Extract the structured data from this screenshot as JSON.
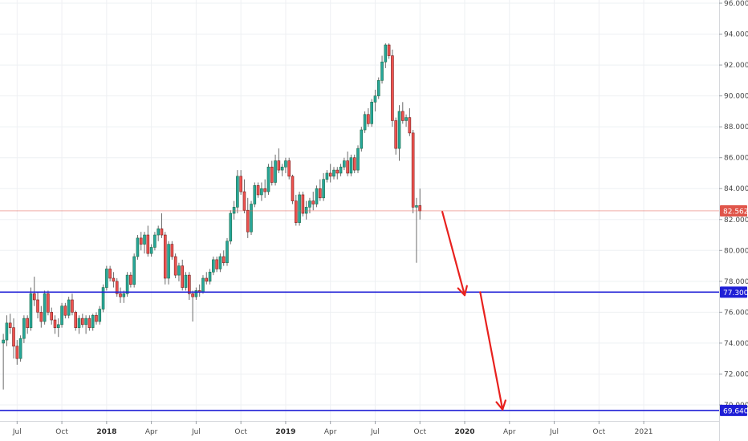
{
  "chart_data": {
    "type": "candlestick",
    "ylim": [
      69.0,
      96.0
    ],
    "y_ticks": [
      "96.000",
      "94.000",
      "92.000",
      "90.000",
      "88.000",
      "86.000",
      "84.000",
      "82.000",
      "80.000",
      "78.000",
      "76.000",
      "74.000",
      "72.000",
      "70.000"
    ],
    "y_tick_values": [
      96,
      94,
      92,
      90,
      88,
      86,
      84,
      82,
      80,
      78,
      76,
      74,
      72,
      70
    ],
    "x_ticks": [
      {
        "label": "Jul",
        "week": 4,
        "bold": false
      },
      {
        "label": "Oct",
        "week": 17,
        "bold": false
      },
      {
        "label": "2018",
        "week": 30,
        "bold": true
      },
      {
        "label": "Apr",
        "week": 43,
        "bold": false
      },
      {
        "label": "Jul",
        "week": 56,
        "bold": false
      },
      {
        "label": "Oct",
        "week": 69,
        "bold": false
      },
      {
        "label": "2019",
        "week": 82,
        "bold": true
      },
      {
        "label": "Apr",
        "week": 95,
        "bold": false
      },
      {
        "label": "Jul",
        "week": 108,
        "bold": false
      },
      {
        "label": "Oct",
        "week": 121,
        "bold": false
      },
      {
        "label": "2020",
        "week": 134,
        "bold": true
      },
      {
        "label": "Apr",
        "week": 147,
        "bold": false
      },
      {
        "label": "Jul",
        "week": 160,
        "bold": false
      },
      {
        "label": "Oct",
        "week": 173,
        "bold": false
      },
      {
        "label": "2021",
        "week": 186,
        "bold": false
      }
    ],
    "weeks_visible": [
      0,
      205
    ],
    "candles": [
      [
        74.0,
        74.6,
        71.0,
        74.2
      ],
      [
        74.2,
        75.8,
        73.8,
        75.3
      ],
      [
        75.3,
        75.9,
        74.6,
        75.0
      ],
      [
        75.0,
        75.6,
        73.0,
        73.8
      ],
      [
        73.8,
        74.2,
        72.6,
        73.0
      ],
      [
        73.0,
        74.5,
        72.8,
        74.3
      ],
      [
        74.3,
        75.8,
        74.0,
        75.6
      ],
      [
        75.6,
        75.8,
        74.6,
        75.0
      ],
      [
        75.0,
        77.6,
        74.8,
        77.2
      ],
      [
        77.2,
        78.3,
        76.4,
        76.8
      ],
      [
        76.8,
        77.3,
        75.6,
        76.0
      ],
      [
        76.0,
        76.4,
        75.0,
        75.4
      ],
      [
        75.4,
        77.4,
        75.2,
        77.2
      ],
      [
        77.2,
        77.4,
        75.8,
        76.0
      ],
      [
        76.0,
        76.3,
        75.2,
        75.5
      ],
      [
        75.5,
        75.8,
        74.6,
        75.0
      ],
      [
        75.0,
        75.6,
        74.4,
        75.2
      ],
      [
        75.2,
        76.6,
        75.0,
        76.4
      ],
      [
        76.4,
        76.6,
        75.6,
        75.8
      ],
      [
        75.8,
        77.0,
        75.6,
        76.8
      ],
      [
        76.8,
        77.2,
        75.8,
        76.0
      ],
      [
        76.0,
        76.1,
        74.8,
        75.0
      ],
      [
        75.0,
        75.8,
        74.6,
        75.6
      ],
      [
        75.6,
        75.9,
        75.0,
        75.2
      ],
      [
        75.2,
        75.8,
        74.6,
        75.6
      ],
      [
        75.6,
        75.8,
        74.8,
        75.0
      ],
      [
        75.0,
        75.9,
        74.8,
        75.8
      ],
      [
        75.8,
        76.0,
        75.2,
        75.4
      ],
      [
        75.4,
        76.4,
        75.2,
        76.2
      ],
      [
        76.2,
        77.8,
        76.0,
        77.6
      ],
      [
        77.6,
        79.0,
        77.4,
        78.8
      ],
      [
        78.8,
        79.0,
        78.0,
        78.2
      ],
      [
        78.2,
        78.6,
        77.6,
        78.0
      ],
      [
        78.0,
        78.2,
        77.0,
        77.2
      ],
      [
        77.2,
        77.6,
        76.6,
        77.0
      ],
      [
        77.0,
        77.4,
        76.6,
        77.2
      ],
      [
        77.2,
        78.6,
        77.0,
        78.4
      ],
      [
        78.4,
        78.6,
        77.6,
        77.8
      ],
      [
        77.8,
        79.8,
        77.6,
        79.6
      ],
      [
        79.6,
        81.0,
        79.4,
        80.8
      ],
      [
        80.8,
        81.2,
        80.0,
        80.4
      ],
      [
        80.4,
        81.2,
        79.8,
        81.0
      ],
      [
        81.0,
        81.6,
        79.6,
        79.8
      ],
      [
        79.8,
        80.4,
        79.6,
        80.2
      ],
      [
        80.2,
        81.2,
        80.0,
        81.0
      ],
      [
        81.0,
        81.6,
        80.6,
        81.4
      ],
      [
        81.4,
        82.4,
        80.8,
        81.0
      ],
      [
        81.0,
        81.2,
        77.8,
        78.2
      ],
      [
        78.2,
        80.6,
        77.8,
        80.4
      ],
      [
        80.4,
        80.6,
        79.4,
        79.6
      ],
      [
        79.6,
        79.8,
        78.2,
        78.4
      ],
      [
        78.4,
        79.2,
        78.0,
        79.0
      ],
      [
        79.0,
        79.4,
        77.4,
        77.6
      ],
      [
        77.6,
        78.6,
        77.4,
        78.4
      ],
      [
        78.4,
        78.6,
        76.8,
        77.2
      ],
      [
        77.2,
        77.4,
        75.4,
        77.0
      ],
      [
        77.0,
        77.6,
        76.8,
        77.4
      ],
      [
        77.4,
        77.8,
        77.0,
        77.3
      ],
      [
        77.3,
        78.4,
        77.2,
        78.2
      ],
      [
        78.2,
        78.6,
        77.8,
        78.0
      ],
      [
        78.0,
        78.8,
        77.8,
        78.6
      ],
      [
        78.6,
        79.6,
        78.4,
        79.4
      ],
      [
        79.4,
        79.6,
        78.6,
        78.8
      ],
      [
        78.8,
        79.8,
        78.6,
        79.6
      ],
      [
        79.6,
        80.0,
        79.0,
        79.2
      ],
      [
        79.2,
        80.8,
        79.0,
        80.6
      ],
      [
        80.6,
        82.6,
        80.4,
        82.4
      ],
      [
        82.4,
        83.2,
        82.0,
        82.8
      ],
      [
        82.8,
        85.2,
        82.4,
        84.8
      ],
      [
        84.8,
        85.2,
        83.6,
        83.8
      ],
      [
        83.8,
        84.6,
        82.4,
        82.6
      ],
      [
        82.6,
        83.4,
        80.8,
        81.2
      ],
      [
        81.2,
        83.2,
        81.0,
        83.0
      ],
      [
        83.0,
        84.4,
        82.8,
        84.2
      ],
      [
        84.2,
        84.4,
        83.4,
        83.6
      ],
      [
        83.6,
        84.4,
        83.2,
        84.0
      ],
      [
        84.0,
        84.6,
        83.4,
        83.8
      ],
      [
        83.8,
        85.6,
        83.6,
        85.4
      ],
      [
        85.4,
        85.8,
        84.2,
        84.4
      ],
      [
        84.4,
        86.2,
        84.2,
        85.8
      ],
      [
        85.8,
        86.6,
        85.0,
        85.2
      ],
      [
        85.2,
        85.6,
        84.8,
        85.4
      ],
      [
        85.4,
        86.0,
        85.0,
        85.8
      ],
      [
        85.8,
        86.0,
        84.6,
        84.8
      ],
      [
        84.8,
        84.9,
        83.0,
        83.2
      ],
      [
        83.2,
        83.6,
        81.6,
        81.8
      ],
      [
        81.8,
        83.8,
        81.6,
        83.6
      ],
      [
        83.6,
        83.8,
        82.2,
        82.4
      ],
      [
        82.4,
        83.2,
        82.0,
        82.8
      ],
      [
        82.8,
        83.4,
        82.4,
        83.2
      ],
      [
        83.2,
        83.8,
        82.6,
        83.0
      ],
      [
        83.0,
        84.2,
        82.8,
        84.0
      ],
      [
        84.0,
        84.6,
        83.2,
        83.4
      ],
      [
        83.4,
        85.0,
        83.2,
        84.6
      ],
      [
        84.6,
        85.2,
        84.4,
        85.0
      ],
      [
        85.0,
        85.6,
        84.4,
        84.8
      ],
      [
        84.8,
        85.4,
        84.6,
        85.2
      ],
      [
        85.2,
        85.4,
        84.6,
        85.0
      ],
      [
        85.0,
        85.6,
        84.8,
        85.4
      ],
      [
        85.4,
        86.0,
        85.2,
        85.8
      ],
      [
        85.8,
        86.4,
        84.8,
        85.0
      ],
      [
        85.0,
        86.2,
        84.8,
        86.0
      ],
      [
        86.0,
        86.2,
        85.0,
        85.2
      ],
      [
        85.2,
        86.8,
        85.0,
        86.6
      ],
      [
        86.6,
        88.0,
        86.4,
        87.8
      ],
      [
        87.8,
        89.0,
        87.6,
        88.8
      ],
      [
        88.8,
        89.2,
        88.0,
        88.2
      ],
      [
        88.2,
        89.8,
        88.0,
        89.6
      ],
      [
        89.6,
        90.4,
        89.0,
        90.0
      ],
      [
        90.0,
        91.2,
        89.8,
        91.0
      ],
      [
        91.0,
        92.6,
        90.8,
        92.2
      ],
      [
        92.2,
        93.4,
        91.8,
        93.3
      ],
      [
        93.3,
        93.4,
        92.4,
        92.6
      ],
      [
        92.6,
        93.0,
        88.0,
        88.4
      ],
      [
        88.4,
        88.6,
        86.2,
        86.6
      ],
      [
        86.6,
        89.4,
        85.8,
        89.0
      ],
      [
        89.0,
        89.6,
        88.2,
        88.4
      ],
      [
        88.4,
        88.8,
        88.0,
        88.6
      ],
      [
        88.6,
        89.2,
        87.4,
        87.6
      ],
      [
        87.6,
        87.8,
        82.4,
        82.8
      ],
      [
        82.8,
        83.4,
        79.2,
        82.9
      ],
      [
        82.9,
        84.0,
        82.0,
        82.56
      ]
    ],
    "horizontal_levels": [
      {
        "value": 77.3,
        "label": "77.300",
        "color": "#1f1fd6"
      },
      {
        "value": 69.64,
        "label": "69.640",
        "color": "#1f1fd6"
      }
    ],
    "last_price": {
      "value": 82.562,
      "label": "82.562",
      "color": "#e0554a"
    },
    "arrows": [
      {
        "from": [
          127.5,
          82.5
        ],
        "to": [
          134.0,
          77.1
        ]
      },
      {
        "from": [
          138.5,
          77.3
        ],
        "to": [
          145.0,
          69.7
        ]
      }
    ],
    "colors": {
      "up": "#26a69a",
      "down": "#ef5350",
      "up_border": "#1f6f4a",
      "down_border": "#7a1f1f",
      "arrow": "#e8211e",
      "grid": "#eef0f3"
    }
  }
}
